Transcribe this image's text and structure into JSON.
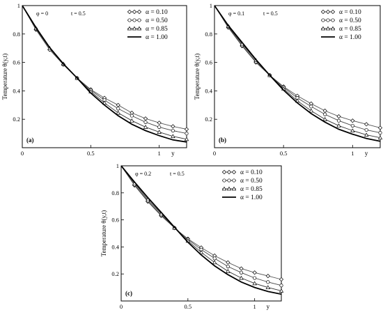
{
  "chart_data": [
    {
      "type": "line",
      "panel_label": "(a)",
      "params": {
        "phi": "φ = 0",
        "t": "t = 0.5"
      },
      "ylabel": "Temperature θ(y,t)",
      "xlabel": "y",
      "xlim": [
        0,
        1.2
      ],
      "ylim": [
        0,
        1.0
      ],
      "x_ticks": [
        "0",
        "0.5",
        "1"
      ],
      "y_ticks": [
        "0.2",
        "0.4",
        "0.6",
        "0.8",
        "1"
      ],
      "x": [
        0,
        0.1,
        0.2,
        0.3,
        0.4,
        0.5,
        0.6,
        0.7,
        0.8,
        0.9,
        1.0,
        1.1,
        1.2
      ],
      "series": [
        {
          "name": "α = 0.10",
          "marker": "diamond",
          "values": [
            1.0,
            0.83,
            0.69,
            0.585,
            0.49,
            0.41,
            0.35,
            0.3,
            0.245,
            0.205,
            0.175,
            0.15,
            0.13
          ]
        },
        {
          "name": "α = 0.50",
          "marker": "circle",
          "values": [
            1.0,
            0.835,
            0.69,
            0.585,
            0.49,
            0.405,
            0.335,
            0.275,
            0.225,
            0.18,
            0.145,
            0.12,
            0.1
          ]
        },
        {
          "name": "α = 0.85",
          "marker": "triangle",
          "values": [
            1.0,
            0.84,
            0.7,
            0.59,
            0.49,
            0.395,
            0.315,
            0.245,
            0.19,
            0.145,
            0.11,
            0.08,
            0.06
          ]
        },
        {
          "name": "α = 1.00",
          "marker": "none",
          "values": [
            1.0,
            0.845,
            0.705,
            0.59,
            0.49,
            0.385,
            0.3,
            0.225,
            0.165,
            0.12,
            0.085,
            0.055,
            0.04
          ]
        }
      ]
    },
    {
      "type": "line",
      "panel_label": "(b)",
      "params": {
        "phi": "φ = 0.1",
        "t": "t = 0.5"
      },
      "ylabel": "Temperature θ(y,t)",
      "xlabel": "y",
      "xlim": [
        0,
        1.2
      ],
      "ylim": [
        0,
        1.0
      ],
      "x_ticks": [
        "0",
        "0.5",
        "1"
      ],
      "y_ticks": [
        "0.2",
        "0.4",
        "0.6",
        "0.8",
        "1"
      ],
      "x": [
        0,
        0.1,
        0.2,
        0.3,
        0.4,
        0.5,
        0.6,
        0.7,
        0.8,
        0.9,
        1.0,
        1.1,
        1.2
      ],
      "series": [
        {
          "name": "α = 0.10",
          "marker": "diamond",
          "values": [
            1.0,
            0.845,
            0.715,
            0.6,
            0.51,
            0.43,
            0.365,
            0.31,
            0.26,
            0.22,
            0.19,
            0.165,
            0.14
          ]
        },
        {
          "name": "α = 0.50",
          "marker": "circle",
          "values": [
            1.0,
            0.85,
            0.72,
            0.605,
            0.51,
            0.425,
            0.35,
            0.29,
            0.235,
            0.19,
            0.155,
            0.125,
            0.105
          ]
        },
        {
          "name": "α = 0.85",
          "marker": "triangle",
          "values": [
            1.0,
            0.855,
            0.73,
            0.615,
            0.51,
            0.415,
            0.33,
            0.26,
            0.2,
            0.155,
            0.12,
            0.09,
            0.07
          ]
        },
        {
          "name": "α = 1.00",
          "marker": "none",
          "values": [
            1.0,
            0.86,
            0.74,
            0.62,
            0.51,
            0.405,
            0.315,
            0.24,
            0.18,
            0.13,
            0.095,
            0.065,
            0.045
          ]
        }
      ]
    },
    {
      "type": "line",
      "panel_label": "(c)",
      "params": {
        "phi": "φ = 0.2",
        "t": "t = 0.5"
      },
      "ylabel": "Temperature θ(y,t)",
      "xlabel": "y",
      "xlim": [
        0,
        1.2
      ],
      "ylim": [
        0,
        1.0
      ],
      "x_ticks": [
        "0",
        "0.5",
        "1"
      ],
      "y_ticks": [
        "0.2",
        "0.4",
        "0.6",
        "0.8",
        "1"
      ],
      "x": [
        0,
        0.1,
        0.2,
        0.3,
        0.4,
        0.5,
        0.6,
        0.7,
        0.8,
        0.9,
        1.0,
        1.1,
        1.2
      ],
      "series": [
        {
          "name": "α = 0.10",
          "marker": "diamond",
          "values": [
            1.0,
            0.855,
            0.735,
            0.63,
            0.54,
            0.46,
            0.395,
            0.335,
            0.285,
            0.24,
            0.21,
            0.185,
            0.16
          ]
        },
        {
          "name": "α = 0.50",
          "marker": "circle",
          "values": [
            1.0,
            0.86,
            0.74,
            0.635,
            0.54,
            0.455,
            0.38,
            0.315,
            0.255,
            0.21,
            0.17,
            0.14,
            0.115
          ]
        },
        {
          "name": "α = 0.85",
          "marker": "triangle",
          "values": [
            1.0,
            0.87,
            0.75,
            0.645,
            0.54,
            0.445,
            0.36,
            0.285,
            0.22,
            0.17,
            0.13,
            0.1,
            0.075
          ]
        },
        {
          "name": "α = 1.00",
          "marker": "none",
          "values": [
            1.0,
            0.88,
            0.765,
            0.655,
            0.545,
            0.435,
            0.34,
            0.26,
            0.195,
            0.14,
            0.1,
            0.07,
            0.05
          ]
        }
      ]
    }
  ]
}
